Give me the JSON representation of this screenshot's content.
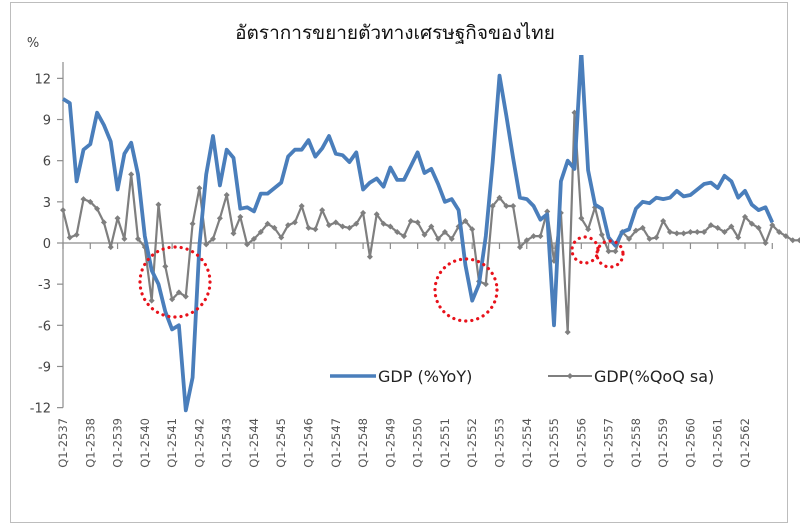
{
  "chart_data": {
    "type": "line",
    "title": "อัตราการขยายตัวทางเศรษฐกิจของไทย",
    "ylabel": "%",
    "xlabel": "",
    "ylim": [
      -12,
      14
    ],
    "yticks": [
      12,
      9,
      6,
      3,
      0,
      -3,
      -6,
      -9,
      -12
    ],
    "grid": false,
    "legend_position": "inside-bottom-right",
    "x_tick_labels": [
      "Q1-2537",
      "Q1-2538",
      "Q1-2539",
      "Q1-2540",
      "Q1-2541",
      "Q1-2542",
      "Q1-2543",
      "Q1-2544",
      "Q1-2545",
      "Q1-2546",
      "Q1-2547",
      "Q1-2548",
      "Q1-2549",
      "Q1-2550",
      "Q1-2551",
      "Q1-2552",
      "Q1-2553",
      "Q1-2554",
      "Q1-2555",
      "Q1-2556",
      "Q1-2557",
      "Q1-2558",
      "Q1-2559",
      "Q1-2560",
      "Q1-2561",
      "Q1-2562"
    ],
    "x_start": "Q1-2537",
    "x_frequency": "quarterly",
    "series": [
      {
        "name": "GDP (%YoY)",
        "color": "#4a7ebb",
        "values": [
          10.5,
          10.2,
          4.5,
          6.8,
          7.2,
          9.5,
          8.6,
          7.4,
          3.9,
          6.5,
          7.3,
          5.0,
          0.5,
          -2.0,
          -3.0,
          -5.0,
          -6.3,
          -6.0,
          -12.2,
          -9.8,
          -0.2,
          5.0,
          7.8,
          4.2,
          6.8,
          6.2,
          2.5,
          2.6,
          2.3,
          3.6,
          3.6,
          4.0,
          4.4,
          6.3,
          6.8,
          6.8,
          7.5,
          6.3,
          6.9,
          7.8,
          6.5,
          6.4,
          5.9,
          6.6,
          3.9,
          4.4,
          4.7,
          4.1,
          5.5,
          4.6,
          4.6,
          5.6,
          6.6,
          5.1,
          5.4,
          4.3,
          3.0,
          3.2,
          2.4,
          -1.6,
          -4.2,
          -3.0,
          0.5,
          5.9,
          12.2,
          9.3,
          6.2,
          3.3,
          3.2,
          2.7,
          1.7,
          2.1,
          -6.0,
          4.5,
          6.0,
          5.4,
          14.0,
          5.3,
          2.8,
          2.5,
          0.4,
          -0.2,
          0.8,
          1.0,
          2.5,
          3.0,
          2.9,
          3.3,
          3.2,
          3.3,
          3.8,
          3.4,
          3.5,
          3.9,
          4.3,
          4.4,
          4.0,
          4.9,
          4.5,
          3.3,
          3.8,
          2.8,
          2.4,
          2.6,
          1.5
        ]
      },
      {
        "name": "GDP(%QoQ sa)",
        "color": "#7f7f7f",
        "values": [
          2.4,
          0.4,
          0.6,
          3.2,
          3.0,
          2.5,
          1.5,
          -0.3,
          1.8,
          0.3,
          5.0,
          0.3,
          -0.3,
          -4.2,
          2.8,
          -1.7,
          -4.1,
          -3.6,
          -3.9,
          1.4,
          4.0,
          -0.1,
          0.3,
          1.8,
          3.5,
          0.7,
          1.9,
          -0.1,
          0.3,
          0.8,
          1.4,
          1.1,
          0.4,
          1.3,
          1.5,
          2.7,
          1.1,
          1.0,
          2.4,
          1.3,
          1.5,
          1.2,
          1.1,
          1.4,
          2.2,
          -1.0,
          2.1,
          1.4,
          1.2,
          0.8,
          0.5,
          1.6,
          1.5,
          0.6,
          1.2,
          0.3,
          0.8,
          0.3,
          1.2,
          1.6,
          1.0,
          -2.8,
          -3.0,
          2.7,
          3.3,
          2.7,
          2.7,
          -0.3,
          0.2,
          0.5,
          0.5,
          2.3,
          -1.3,
          2.2,
          -6.5,
          9.5,
          1.8,
          1.0,
          2.6,
          0.6,
          -0.6,
          -0.6,
          0.8,
          0.3,
          0.9,
          1.1,
          0.3,
          0.4,
          1.6,
          0.8,
          0.7,
          0.7,
          0.8,
          0.8,
          0.8,
          1.3,
          1.1,
          0.8,
          1.2,
          0.4,
          1.9,
          1.4,
          1.1,
          0.0,
          1.3,
          0.8,
          0.5,
          0.2,
          0.2
        ]
      }
    ],
    "annotations": [
      {
        "type": "red-dotted-circle",
        "label": "crisis 2541",
        "cx": 175,
        "cy": 282,
        "r": 35
      },
      {
        "type": "red-dotted-circle",
        "label": "crisis 2552",
        "cx": 466,
        "cy": 290,
        "r": 31
      },
      {
        "type": "red-dotted-circle",
        "label": "dip 2556",
        "cx": 585,
        "cy": 250,
        "r": 13
      },
      {
        "type": "red-dotted-circle",
        "label": "dip 2557",
        "cx": 610,
        "cy": 254,
        "r": 13
      }
    ]
  },
  "legend": {
    "items": [
      {
        "label": "GDP (%YoY)",
        "color": "#4a7ebb"
      },
      {
        "label": "GDP(%QoQ sa)",
        "color": "#7f7f7f"
      }
    ]
  }
}
